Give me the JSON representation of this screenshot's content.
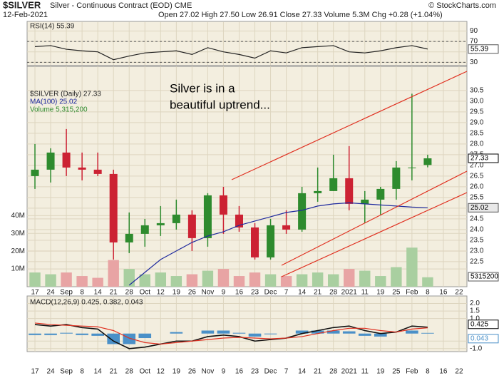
{
  "header": {
    "symbol": "$SILVER",
    "name": "Silver - Continuous Contract (EOD) CME",
    "date": "12-Feb-2021",
    "quote": "Open 27.02 High 27.50 Low 26.91 Close 27.33 Volume 5.3M Chg +0.28 (+1.04%)",
    "source": "© StockCharts.com"
  },
  "chart_data": [
    {
      "type": "line",
      "label": "RSI(14) 55.39",
      "color": "#222222",
      "values": [
        60,
        62,
        55,
        52,
        50,
        35,
        42,
        48,
        50,
        52,
        45,
        58,
        50,
        45,
        38,
        52,
        48,
        58,
        60,
        62,
        50,
        48,
        52,
        58,
        62,
        55.39,
        null,
        null
      ],
      "ylim": [
        25,
        107
      ],
      "yticks": [
        90,
        70,
        50,
        30
      ],
      "dashed": [
        70,
        30
      ]
    },
    {
      "type": "candlestick",
      "legend": [
        "$SILVER (Daily) 27.33",
        "MA(100) 25.02",
        "Volume 5,315,200"
      ],
      "annotation": [
        "Silver is in a",
        "beautiful uptrend..."
      ],
      "categories": [
        "17",
        "24",
        "Sep",
        "8",
        "14",
        "21",
        "28",
        "Oct",
        "12",
        "19",
        "26",
        "Nov",
        "9",
        "16",
        "23",
        "Dec",
        "7",
        "14",
        "21",
        "28",
        "2021",
        "11",
        "19",
        "25",
        "Feb",
        "8",
        "16",
        "22"
      ],
      "open": [
        26.5,
        26.8,
        27.6,
        26.9,
        26.8,
        26.6,
        23.4,
        23.8,
        24.2,
        24.3,
        24.7,
        23.6,
        25.6,
        24.7,
        24.1,
        22.7,
        24.2,
        24.0,
        25.7,
        25.8,
        26.4,
        25.2,
        25.4,
        25.9,
        26.9,
        27.02,
        null,
        null
      ],
      "high": [
        28.0,
        27.8,
        28.7,
        27.6,
        27.6,
        26.8,
        24.8,
        24.5,
        25.1,
        25.4,
        24.9,
        25.7,
        26.0,
        25.1,
        24.3,
        24.5,
        24.9,
        26.0,
        26.9,
        27.5,
        27.9,
        25.8,
        26.0,
        27.2,
        30.35,
        27.5,
        null,
        null
      ],
      "low": [
        25.9,
        26.2,
        26.5,
        26.3,
        26.5,
        22.6,
        22.9,
        23.2,
        23.7,
        24.0,
        23.0,
        23.2,
        23.8,
        23.9,
        22.6,
        22.6,
        23.8,
        23.9,
        25.3,
        25.8,
        24.9,
        24.3,
        24.7,
        25.4,
        26.3,
        26.91,
        null,
        null
      ],
      "close": [
        26.8,
        27.6,
        26.9,
        26.8,
        26.6,
        23.4,
        23.8,
        24.2,
        24.3,
        24.7,
        23.6,
        25.6,
        24.7,
        24.1,
        22.7,
        24.2,
        24.0,
        25.7,
        25.8,
        26.4,
        25.2,
        25.4,
        25.9,
        26.9,
        26.9,
        27.33,
        null,
        null
      ],
      "up_color": "#2e8b2e",
      "down_color": "#cc2233",
      "ma": {
        "color": "#1f2a9e",
        "values": [
          null,
          null,
          null,
          null,
          null,
          null,
          21.4,
          22.0,
          22.6,
          23.0,
          23.4,
          23.7,
          23.9,
          24.2,
          24.4,
          24.6,
          24.8,
          24.9,
          25.1,
          25.2,
          25.25,
          25.2,
          25.15,
          25.1,
          25.05,
          25.02,
          null,
          null
        ]
      },
      "volume": {
        "up_color": "#a9cfa0",
        "down_color": "#e8a4a4",
        "values": [
          8000000,
          7000000,
          8000000,
          6000000,
          5000000,
          15000000,
          10000000,
          7000000,
          8000000,
          6000000,
          7000000,
          9000000,
          10000000,
          6000000,
          8000000,
          7000000,
          6000000,
          7000000,
          8000000,
          7000000,
          10000000,
          9000000,
          6000000,
          11000000,
          22000000,
          5315200,
          null,
          null
        ],
        "ylim": [
          0,
          124000000
        ],
        "yticks": [
          {
            "value": 10000000,
            "label": "10M"
          },
          {
            "value": 20000000,
            "label": "20M"
          },
          {
            "value": 30000000,
            "label": "30M"
          },
          {
            "value": 40000000,
            "label": "40M"
          }
        ]
      },
      "ylim": [
        21.33,
        31.63
      ],
      "yticks": [
        22.5,
        {
          "value": 23,
          "label": "23.0"
        },
        23.5,
        {
          "value": 24,
          "label": "24.0"
        },
        24.5,
        {
          "value": 25,
          "label": "25.0"
        },
        25.5,
        {
          "value": 26,
          "label": "26.0"
        },
        26.5,
        {
          "value": 27,
          "label": "27.0"
        },
        27.5,
        {
          "value": 28,
          "label": "28.0"
        },
        28.5,
        {
          "value": 29,
          "label": "29.0"
        },
        29.5,
        {
          "value": 30,
          "label": "30.0"
        },
        30.5
      ]
    },
    {
      "type": "macd",
      "label": "MACD(12,26,9) 0.425, 0.382, 0.043",
      "series": [
        {
          "color": "#111111",
          "values": [
            0.6,
            0.5,
            0.6,
            0.4,
            0.3,
            -0.5,
            -1.0,
            -0.9,
            -0.7,
            -0.5,
            -0.5,
            -0.2,
            -0.1,
            -0.2,
            -0.5,
            -0.4,
            -0.3,
            0.0,
            0.2,
            0.4,
            0.5,
            0.2,
            0.0,
            0.1,
            0.5,
            0.425,
            null,
            null
          ]
        },
        {
          "color": "#e03020",
          "values": [
            0.7,
            0.6,
            0.55,
            0.5,
            0.45,
            0.2,
            -0.3,
            -0.6,
            -0.7,
            -0.6,
            -0.5,
            -0.4,
            -0.3,
            -0.25,
            -0.3,
            -0.35,
            -0.3,
            -0.2,
            0.0,
            0.2,
            0.35,
            0.35,
            0.2,
            0.1,
            0.3,
            0.382,
            null,
            null
          ]
        }
      ],
      "histogram": {
        "color": "#4a90c8",
        "values": [
          -0.1,
          -0.1,
          0.05,
          -0.1,
          -0.15,
          -0.7,
          -0.7,
          -0.3,
          0,
          0.1,
          0,
          0.2,
          0.2,
          0.05,
          -0.2,
          -0.05,
          0,
          0.2,
          0.2,
          0.2,
          0.15,
          -0.15,
          -0.2,
          0,
          0.2,
          0.043,
          null,
          null
        ]
      },
      "ylim": [
        -1.2,
        2.5
      ],
      "yticks": [
        {
          "value": 2,
          "label": "2.0"
        },
        {
          "value": 1.5,
          "label": "1.5"
        },
        {
          "value": 1,
          "label": "1.0"
        },
        -0.5,
        {
          "value": -1,
          "label": "-1.0"
        }
      ]
    }
  ]
}
